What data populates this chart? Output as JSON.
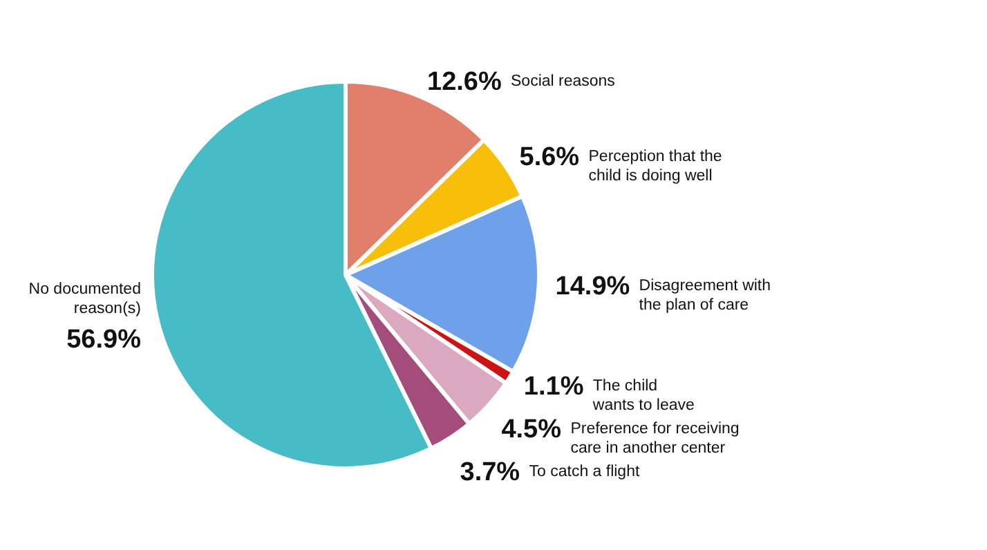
{
  "chart_data": {
    "type": "pie",
    "categories": [
      "Social reasons",
      "Perception that the child is doing well",
      "Disagreement with the plan of care",
      "The child wants to leave",
      "Preference for receiving care in another center",
      "To catch a flight",
      "No documented reason(s)"
    ],
    "values": [
      12.6,
      5.6,
      14.9,
      1.1,
      4.5,
      3.7,
      56.9
    ],
    "colors": [
      "#e07f6c",
      "#f8bf0a",
      "#6fa0ea",
      "#cc1414",
      "#dba9bf",
      "#a44d7a",
      "#47bcc6"
    ],
    "value_labels": [
      "12.6%",
      "5.6%",
      "14.9%",
      "1.1%",
      "4.5%",
      "3.7%",
      "56.9%"
    ]
  }
}
